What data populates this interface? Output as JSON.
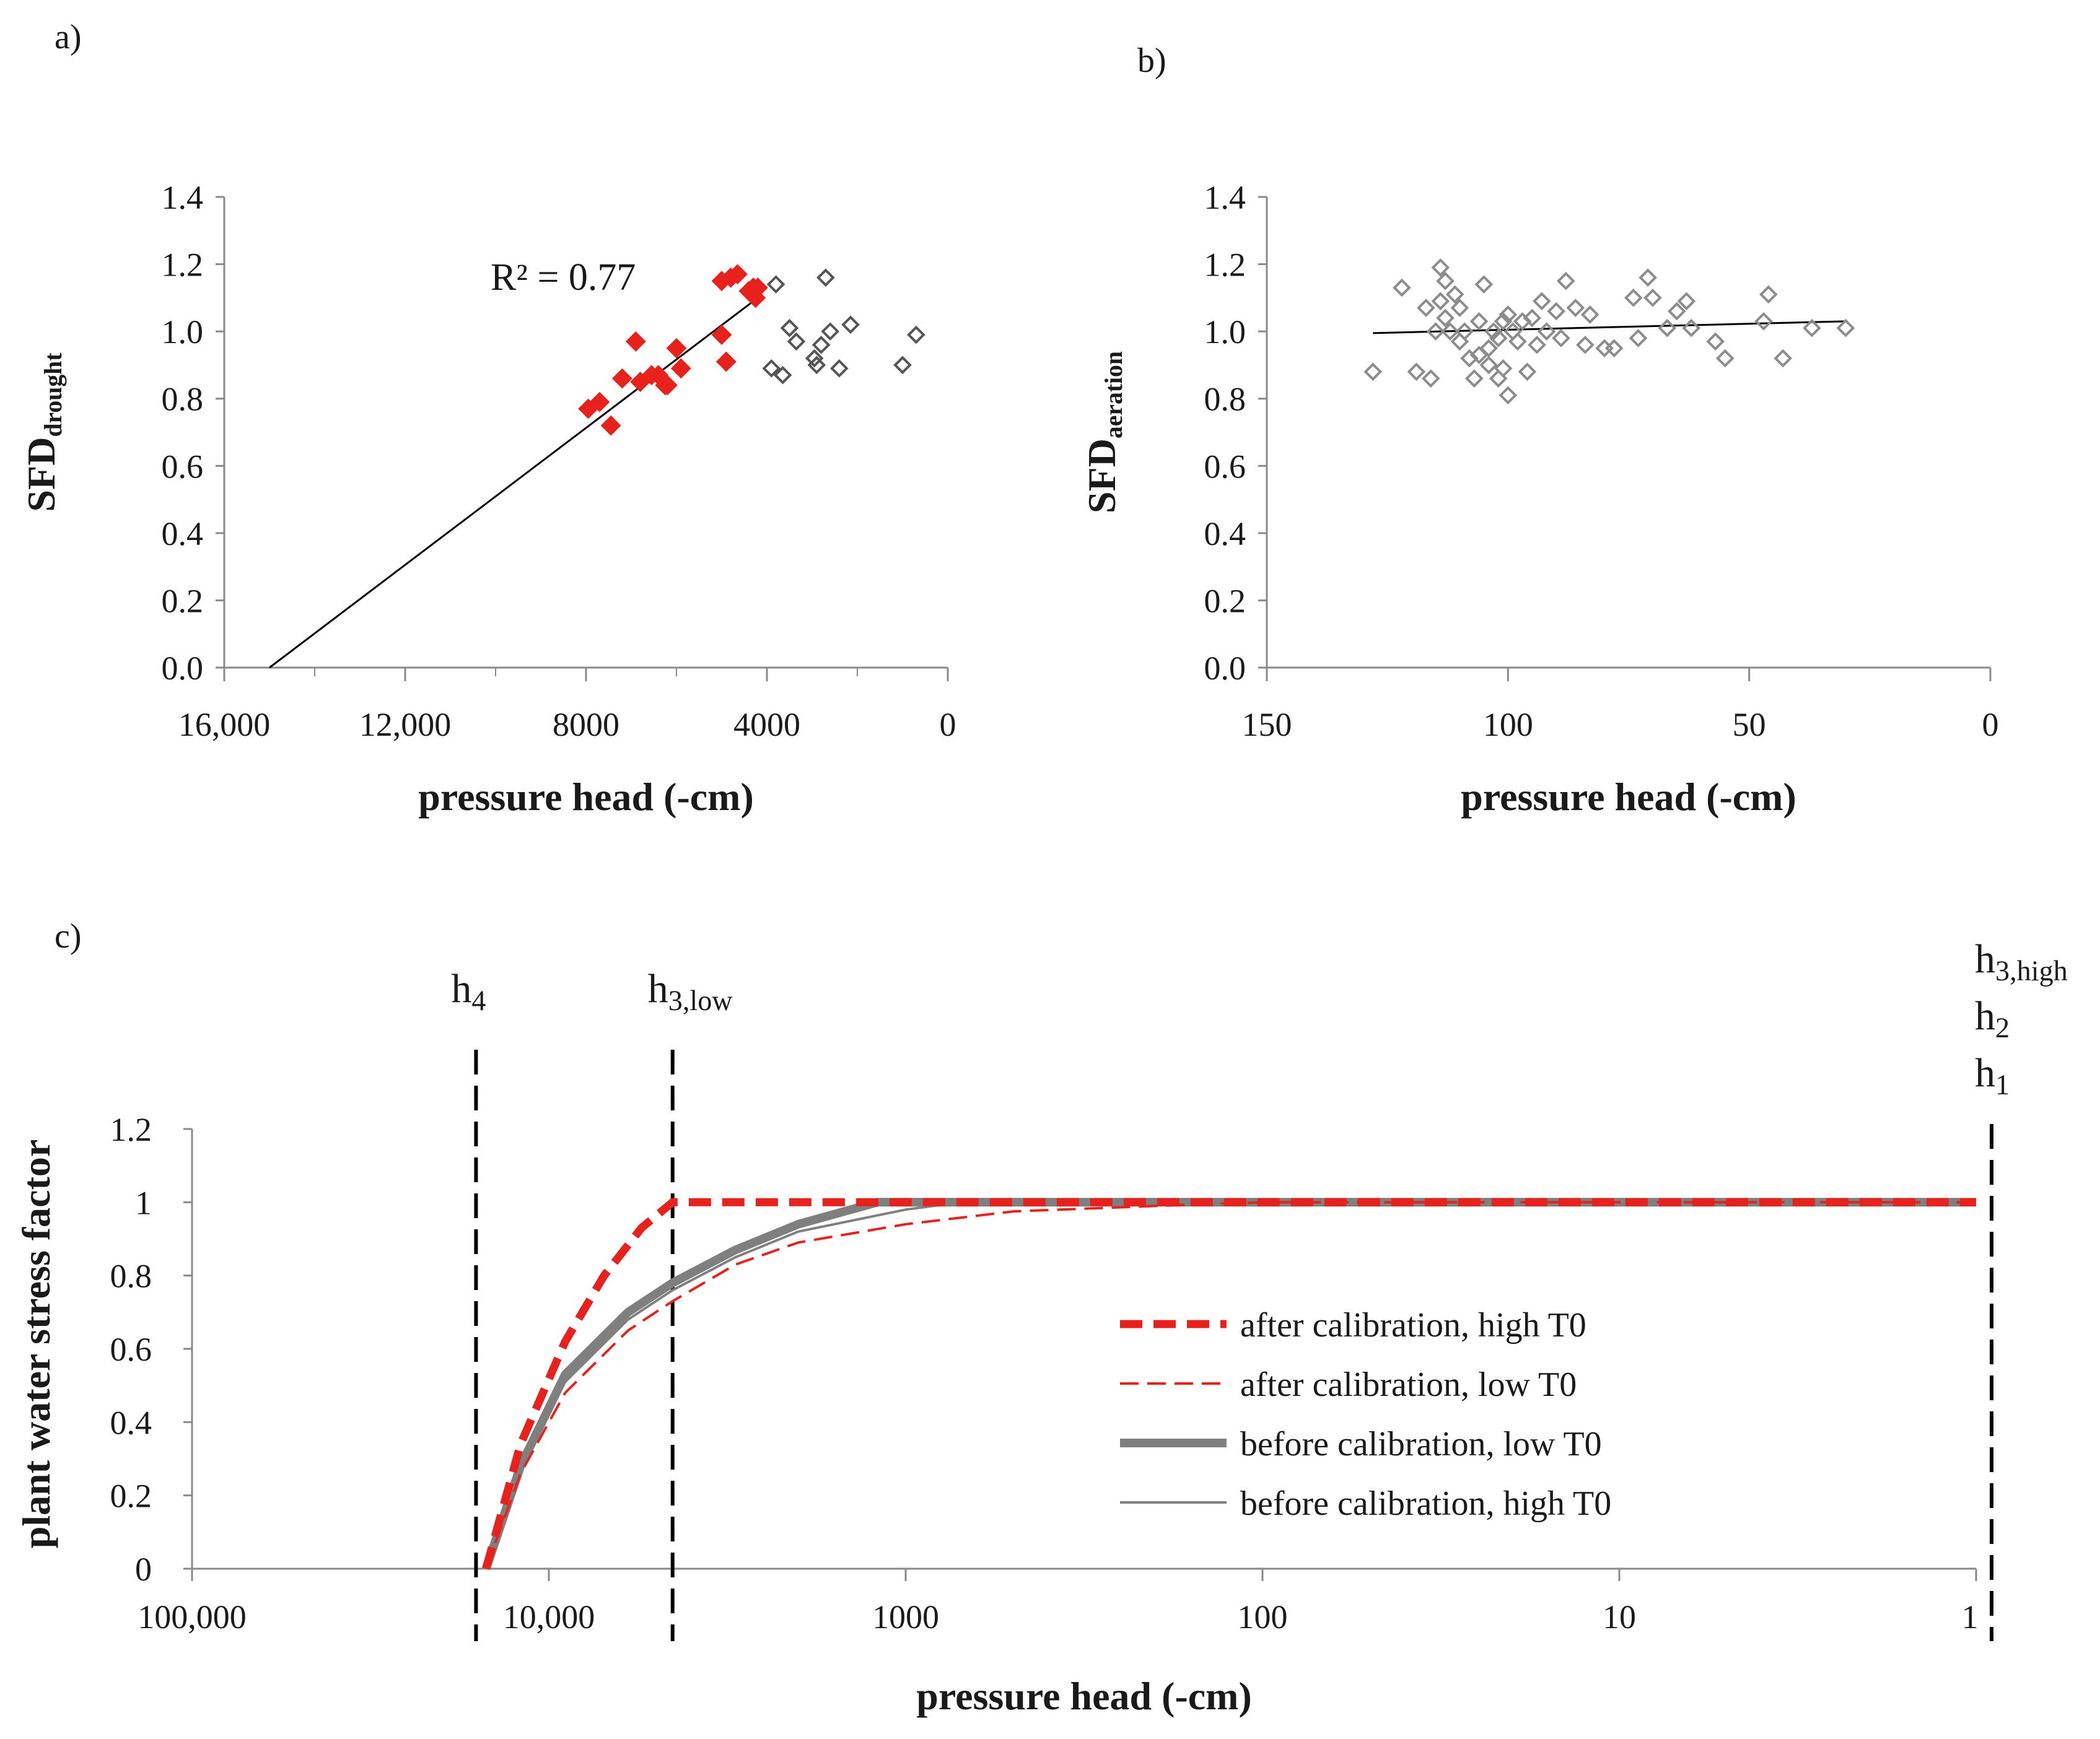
{
  "chart_data": [
    {
      "panel": "a)",
      "type": "scatter",
      "xlabel": "pressure head (-cm)",
      "ylabel_main": "SFD",
      "ylabel_sub": "drought",
      "xlim": [
        16000,
        0
      ],
      "ylim": [
        0,
        1.4
      ],
      "xticks": [
        16000,
        12000,
        8000,
        4000,
        0
      ],
      "xtick_labels": [
        "16,000",
        "12,000",
        "8000",
        "4000",
        "0"
      ],
      "yticks": [
        0,
        0.2,
        0.4,
        0.6,
        0.8,
        1.0,
        1.2,
        1.4
      ],
      "ytick_labels": [
        "0.0",
        "0.2",
        "0.4",
        "0.6",
        "0.8",
        "1.0",
        "1.2",
        "1.4"
      ],
      "annotation": "R² = 0.77",
      "colors": {
        "fitted": "#e8211c",
        "other": "#555555",
        "trend": "#000000"
      },
      "trendline": {
        "x": [
          15000,
          4200
        ],
        "y": [
          0.0,
          1.1
        ]
      },
      "series": [
        {
          "name": "drought points (fitted)",
          "marker": "filled-diamond",
          "x": [
            7950,
            7700,
            7450,
            7200,
            6900,
            6800,
            6550,
            6400,
            6250,
            6200,
            6000,
            5900,
            5000,
            5000,
            4900,
            4800,
            4650,
            4400,
            4300,
            4250,
            4200
          ],
          "y": [
            0.77,
            0.79,
            0.72,
            0.86,
            0.97,
            0.85,
            0.87,
            0.87,
            0.84,
            0.84,
            0.95,
            0.89,
            1.15,
            0.99,
            0.91,
            1.16,
            1.17,
            1.12,
            1.13,
            1.1,
            1.13
          ]
        },
        {
          "name": "other points",
          "marker": "open-diamond",
          "x": [
            3900,
            3800,
            3650,
            3500,
            3350,
            2950,
            2900,
            2800,
            2700,
            2600,
            2400,
            2150,
            1000,
            700
          ],
          "y": [
            0.89,
            1.14,
            0.87,
            1.01,
            0.97,
            0.92,
            0.9,
            0.96,
            1.16,
            1.0,
            0.89,
            1.02,
            0.9,
            0.99
          ]
        }
      ]
    },
    {
      "panel": "b)",
      "type": "scatter",
      "xlabel": "pressure head (-cm)",
      "ylabel_main": "SFD",
      "ylabel_sub": "aeration",
      "xlim": [
        150,
        0
      ],
      "ylim": [
        0,
        1.4
      ],
      "xticks": [
        150,
        100,
        50,
        0
      ],
      "xtick_labels": [
        "150",
        "100",
        "50",
        "0"
      ],
      "yticks": [
        0,
        0.2,
        0.4,
        0.6,
        0.8,
        1.0,
        1.2,
        1.4
      ],
      "ytick_labels": [
        "0.0",
        "0.2",
        "0.4",
        "0.6",
        "0.8",
        "1.0",
        "1.2",
        "1.4"
      ],
      "colors": {
        "points": "#8c8c8c",
        "trend": "#000000"
      },
      "trendline": {
        "x": [
          128,
          30
        ],
        "y": [
          0.995,
          1.03
        ]
      },
      "series": [
        {
          "name": "aeration points",
          "marker": "open-diamond",
          "x": [
            128,
            122,
            119,
            117,
            116,
            115,
            114,
            114,
            113,
            113,
            112,
            111,
            110,
            110,
            109,
            108,
            107,
            106,
            106,
            105,
            104,
            104,
            103,
            102,
            102,
            101,
            101,
            100,
            100,
            99,
            98,
            97,
            96,
            95,
            94,
            93,
            92,
            90,
            89,
            88,
            86,
            84,
            83,
            80,
            78,
            74,
            73,
            71,
            70,
            67,
            65,
            63,
            62,
            57,
            55,
            47,
            46,
            43,
            37,
            30
          ],
          "y": [
            0.88,
            1.13,
            0.88,
            1.07,
            0.86,
            1.0,
            1.09,
            1.19,
            1.04,
            1.15,
            1.0,
            1.11,
            0.97,
            1.07,
            1.0,
            0.92,
            0.86,
            0.93,
            1.03,
            1.14,
            0.9,
            0.95,
            1.0,
            0.98,
            0.86,
            1.03,
            0.89,
            0.81,
            1.05,
            1.0,
            0.97,
            1.03,
            0.88,
            1.04,
            0.96,
            1.09,
            1.0,
            1.06,
            0.98,
            1.15,
            1.07,
            0.96,
            1.05,
            0.95,
            0.95,
            1.1,
            0.98,
            1.16,
            1.1,
            1.01,
            1.06,
            1.09,
            1.01,
            0.97,
            0.92,
            1.03,
            1.11,
            0.92,
            1.01,
            1.01
          ]
        }
      ]
    },
    {
      "panel": "c)",
      "type": "line",
      "xscale": "log",
      "xlabel": "pressure head (-cm)",
      "ylabel": "plant water stress  factor",
      "xlim": [
        100000,
        1
      ],
      "ylim": [
        0,
        1.2
      ],
      "xticks": [
        100000,
        10000,
        1000,
        100,
        10,
        1
      ],
      "xtick_labels": [
        "100,000",
        "10,000",
        "1000",
        "100",
        "10",
        "1"
      ],
      "yticks": [
        0,
        0.2,
        0.4,
        0.6,
        0.8,
        1.0,
        1.2
      ],
      "ytick_labels": [
        "0",
        "0.2",
        "0.4",
        "0.6",
        "0.8",
        "1",
        "1.2"
      ],
      "vlines": [
        {
          "x": 16000,
          "labels": [
            {
              "main": "h",
              "sub": "4"
            }
          ]
        },
        {
          "x": 4500,
          "labels": [
            {
              "main": "h",
              "sub": "3,low"
            }
          ]
        },
        {
          "x": 0.95,
          "labels": [
            {
              "main": "h",
              "sub": "3,high"
            },
            {
              "main": "h",
              "sub": "2"
            },
            {
              "main": "h",
              "sub": "1"
            }
          ]
        }
      ],
      "series": [
        {
          "name": "after calibration, high T0",
          "color": "#e8211c",
          "style": "dashed",
          "weight": "heavy",
          "x": [
            15000,
            12000,
            9000,
            7000,
            5500,
            4500,
            3000,
            1200,
            1
          ],
          "y": [
            0,
            0.34,
            0.62,
            0.8,
            0.93,
            1.0,
            1.0,
            1.0,
            1.0
          ]
        },
        {
          "name": "after calibration, low T0",
          "color": "#e8211c",
          "style": "dashed",
          "weight": "thin",
          "x": [
            15000,
            12000,
            9000,
            6000,
            4500,
            3000,
            2000,
            1000,
            500,
            200,
            100,
            1
          ],
          "y": [
            0,
            0.26,
            0.48,
            0.65,
            0.73,
            0.83,
            0.89,
            0.94,
            0.975,
            0.99,
            1.0,
            1.0
          ]
        },
        {
          "name": "before calibration, low T0",
          "color": "#7f7f7f",
          "style": "solid",
          "weight": "heavy",
          "x": [
            15000,
            12000,
            9000,
            6000,
            4500,
            3000,
            2000,
            1200,
            1
          ],
          "y": [
            0,
            0.28,
            0.53,
            0.7,
            0.78,
            0.87,
            0.94,
            1.0,
            1.0
          ]
        },
        {
          "name": "before calibration, high T0",
          "color": "#7f7f7f",
          "style": "solid",
          "weight": "thin",
          "x": [
            15000,
            12000,
            9000,
            6000,
            4500,
            3000,
            2000,
            1000,
            700,
            1
          ],
          "y": [
            0,
            0.27,
            0.51,
            0.68,
            0.76,
            0.85,
            0.92,
            0.98,
            1.0,
            1.0
          ]
        }
      ]
    }
  ]
}
